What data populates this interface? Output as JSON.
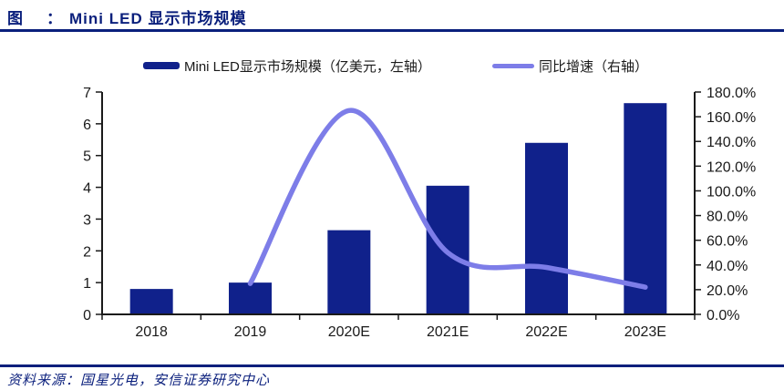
{
  "header": {
    "fig_label": "图",
    "colon": "：",
    "title": "Mini LED 显示市场规模"
  },
  "colors": {
    "navy": "#0A1F7C",
    "bar": "#10218B",
    "line": "#7D7DE8",
    "axis_text": "#1a1a1a"
  },
  "footer": {
    "source": "资料来源：国星光电，安信证券研究中心"
  },
  "chart_data": {
    "type": "bar",
    "subtype": "bar+line combo, dual axis",
    "title": "Mini LED 显示市场规模",
    "categories": [
      "2018",
      "2019",
      "2020E",
      "2021E",
      "2022E",
      "2023E"
    ],
    "series": [
      {
        "name": "Mini LED显示市场规模（亿美元，左轴）",
        "type": "bar",
        "axis": "left",
        "color": "#10218B",
        "values": [
          0.8,
          1.0,
          2.65,
          4.05,
          5.4,
          6.65
        ]
      },
      {
        "name": "同比增速（右轴）",
        "type": "line",
        "axis": "right",
        "color": "#7D7DE8",
        "unit": "%",
        "values": [
          null,
          25,
          165,
          50,
          38,
          22
        ]
      }
    ],
    "left_axis": {
      "min": 0,
      "max": 7,
      "step": 1
    },
    "right_axis": {
      "min": 0,
      "max": 180,
      "step": 20
    },
    "left_ticks": [
      "0",
      "1",
      "2",
      "3",
      "4",
      "5",
      "6",
      "7"
    ],
    "right_ticks": [
      "0.0%",
      "20.0%",
      "40.0%",
      "60.0%",
      "80.0%",
      "100.0%",
      "120.0%",
      "140.0%",
      "160.0%",
      "180.0%"
    ],
    "grid": false,
    "legend_position": "top"
  }
}
